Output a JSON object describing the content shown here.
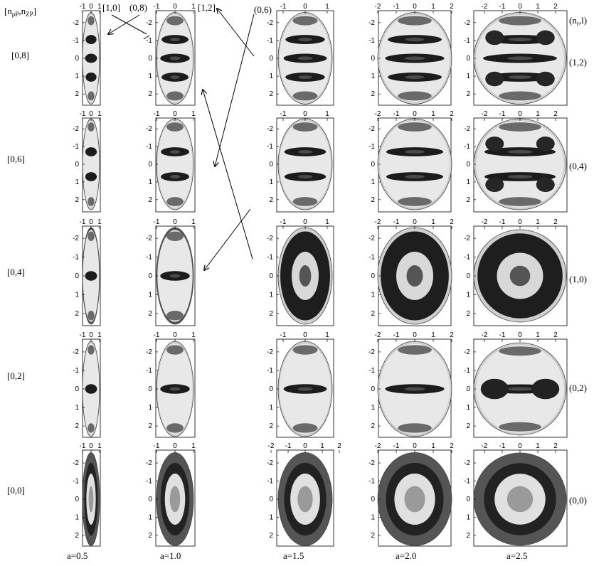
{
  "header_label": "[nρP,nZP]",
  "header_label_main": "[n",
  "header_label_sub1": "ρP",
  "header_label_mid": ",n",
  "header_label_sub2": "ZP",
  "header_label_end": "]",
  "corner_label_main": "(n",
  "corner_label_sub": "r",
  "corner_label_end": ",l)",
  "row_labels_left": [
    "[0,8]",
    "[0,6]",
    "[0,4]",
    "[0,2]",
    "[0,0]"
  ],
  "row_labels_right": [
    "(1,2)",
    "(0,4)",
    "(1,0)",
    "(0,2)",
    "(0,0)"
  ],
  "column_labels": [
    "a=0.5",
    "a=1.0",
    "a=1.5",
    "a=2.0",
    "a=2.5"
  ],
  "arrow_labels": [
    "[1,0]",
    "(0,8)",
    "[1,2]",
    "(0,6)"
  ],
  "tick_labels": {
    "col0": [
      "-1",
      "0",
      "1"
    ],
    "col1": [
      "-1",
      "0",
      "1"
    ],
    "col2": [
      "-1",
      "0",
      "1"
    ],
    "col2_row4": [
      "-2",
      "-1",
      "0",
      "1",
      "2"
    ],
    "col3": [
      "-2",
      "-1",
      "0",
      "1",
      "2"
    ],
    "col4": [
      "-2",
      "-1",
      "0",
      "1",
      "2"
    ],
    "y": [
      "-2",
      "-1",
      "0",
      "1",
      "2"
    ]
  },
  "colors": {
    "ink": "#000000",
    "background": "#ffffff",
    "dark_band": "#222222",
    "light_band": "#e8e8e8"
  }
}
